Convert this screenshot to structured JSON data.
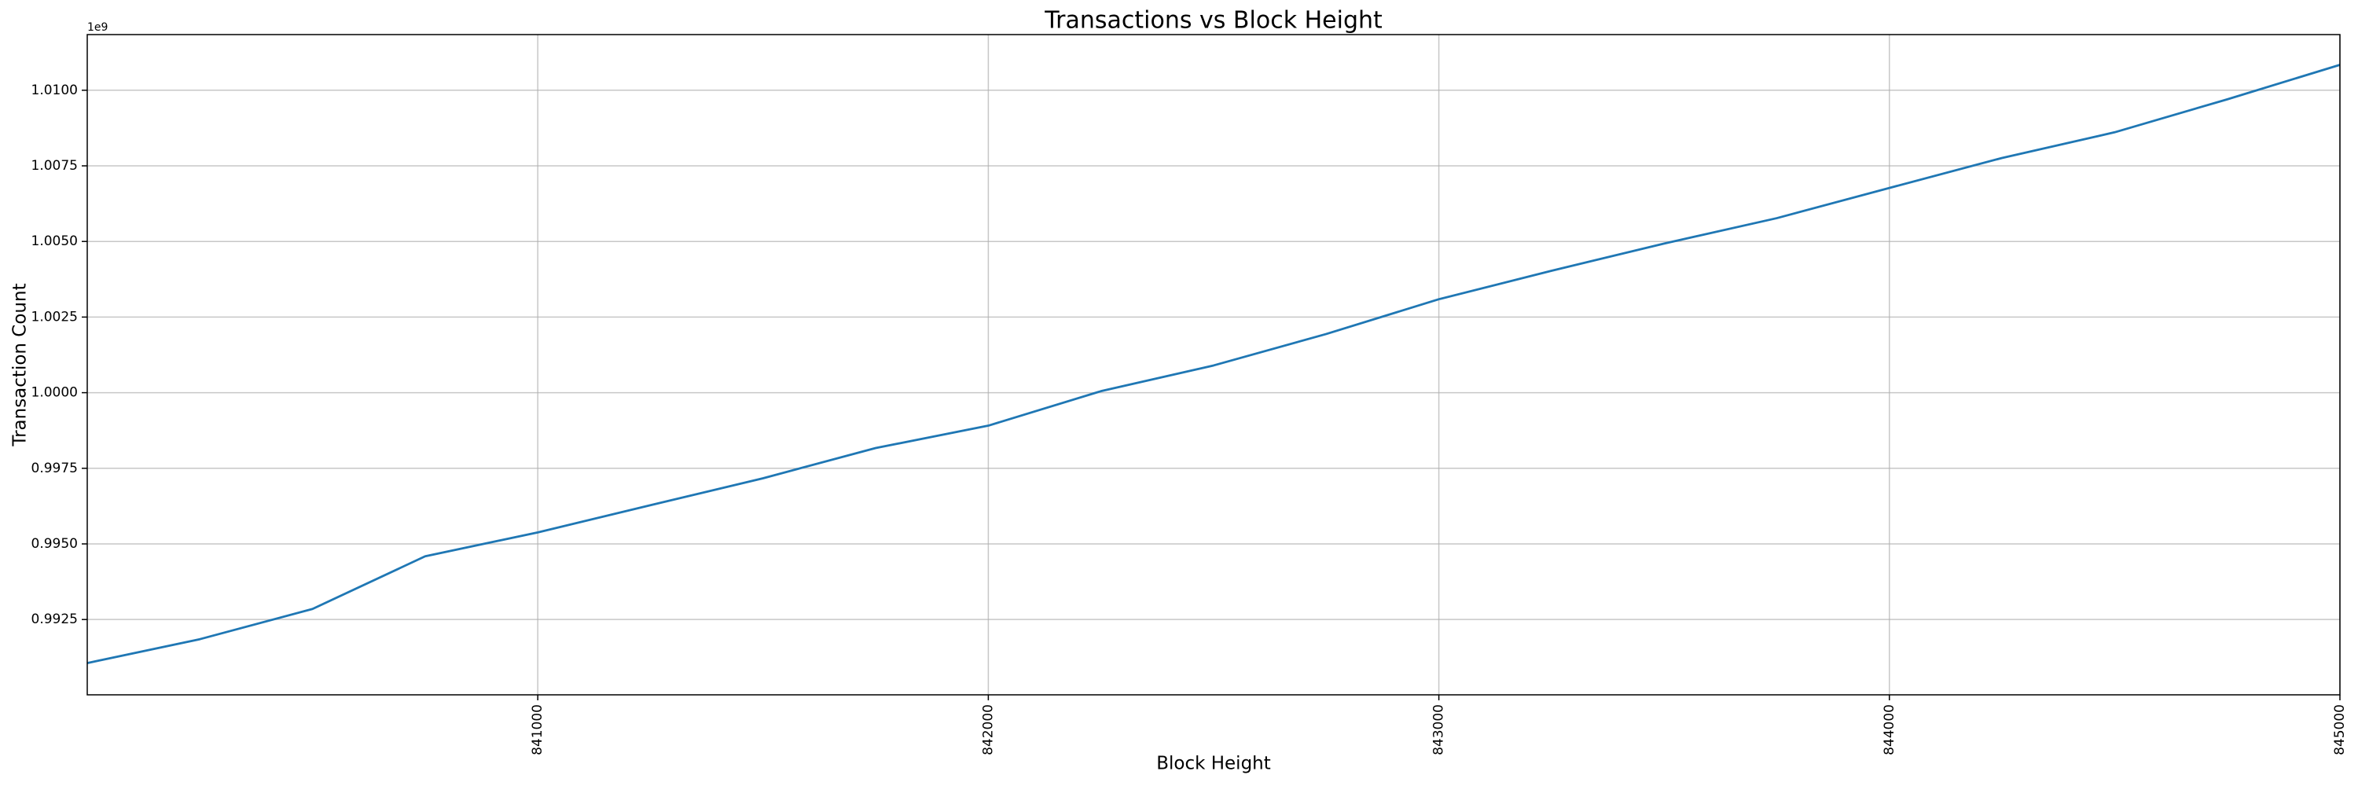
{
  "chart_data": {
    "type": "line",
    "title": "Transactions vs Block Height",
    "x_label": "Block Height",
    "y_label": "Transaction Count",
    "y_offset_label": "1e9",
    "x": [
      840000,
      840250,
      840500,
      840750,
      841000,
      841250,
      841500,
      841750,
      842000,
      842250,
      842500,
      842750,
      843000,
      843250,
      843500,
      843750,
      844000,
      844250,
      844500,
      844750,
      845000
    ],
    "values": [
      991060000,
      991850000,
      992850000,
      994590000,
      995380000,
      996280000,
      997170000,
      998170000,
      998910000,
      1000050000,
      1000900000,
      1001940000,
      1003090000,
      1004030000,
      1004930000,
      1005770000,
      1006770000,
      1007760000,
      1008610000,
      1009700000,
      1010840000
    ],
    "color": "#1f77b4",
    "xlim": [
      840000,
      845000
    ],
    "xticks": [
      841000,
      842000,
      843000,
      844000,
      845000
    ],
    "ylim": [
      990010000,
      1011840000
    ],
    "yticks": [
      {
        "value": 992500000,
        "label": "0.9925"
      },
      {
        "value": 995000000,
        "label": "0.9950"
      },
      {
        "value": 997500000,
        "label": "0.9975"
      },
      {
        "value": 1000000000,
        "label": "1.0000"
      },
      {
        "value": 1002500000,
        "label": "1.0025"
      },
      {
        "value": 1005000000,
        "label": "1.0050"
      },
      {
        "value": 1007500000,
        "label": "1.0075"
      },
      {
        "value": 1010000000,
        "label": "1.0100"
      }
    ],
    "grid": true
  }
}
